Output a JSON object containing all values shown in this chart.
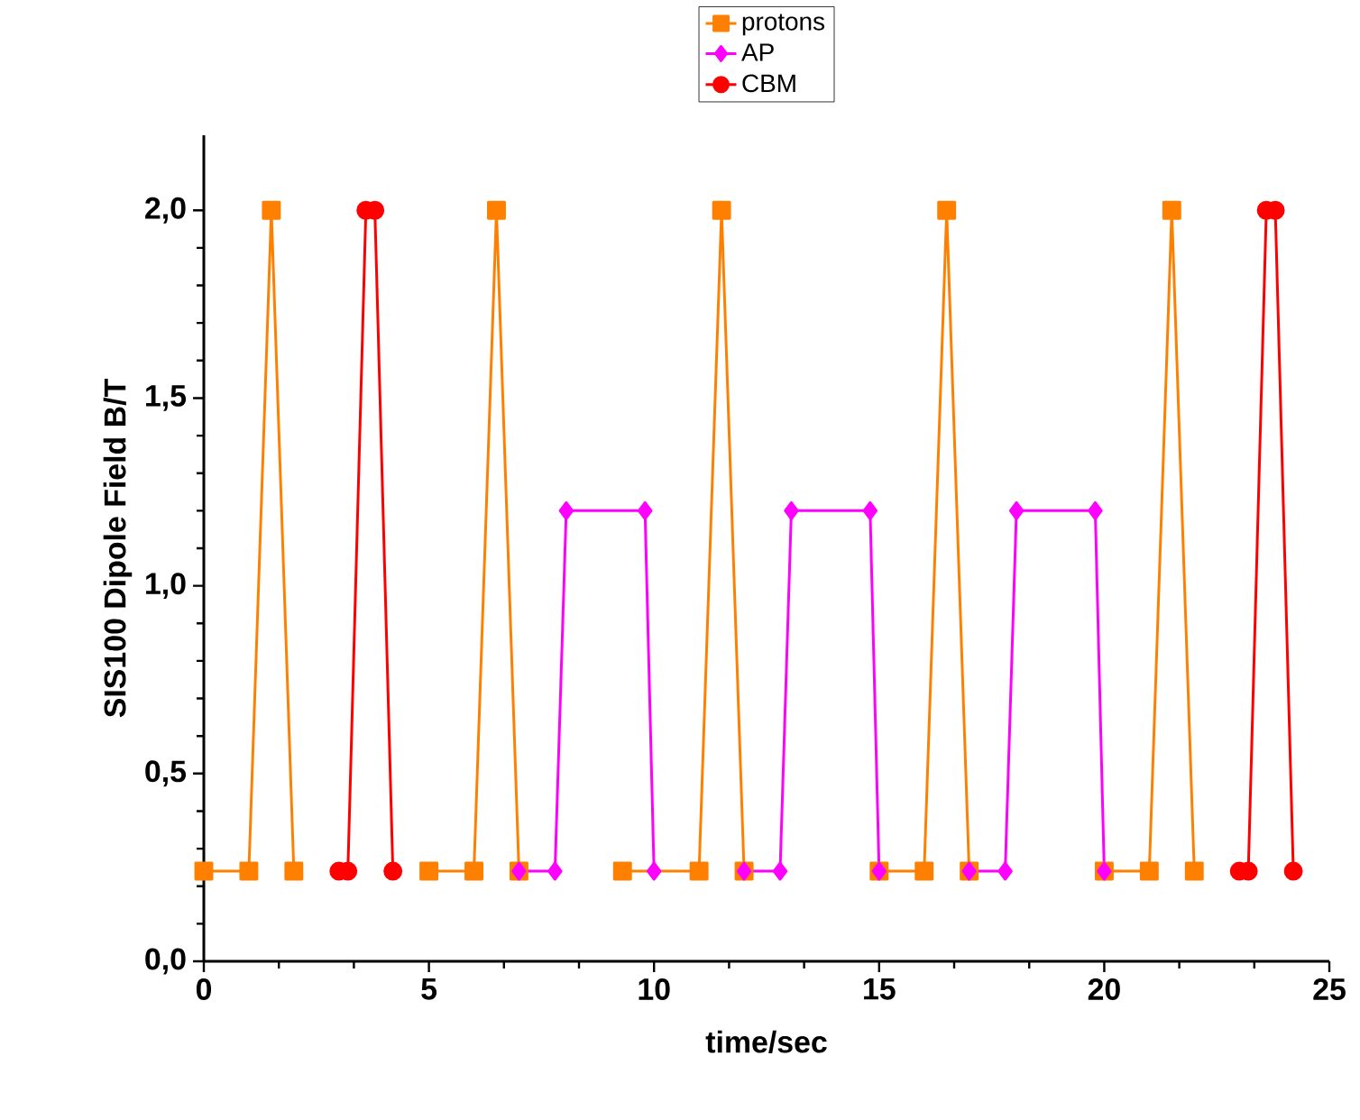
{
  "chart_data": {
    "type": "line",
    "xlabel": "time/sec",
    "ylabel": "SIS100 Dipole Field B/T",
    "xlim": [
      0,
      25
    ],
    "ylim": [
      0,
      2.2
    ],
    "xticks": [
      0,
      5,
      10,
      15,
      20,
      25
    ],
    "yticks": [
      {
        "value": 0,
        "label": "0,0"
      },
      {
        "value": 0.5,
        "label": "0,5"
      },
      {
        "value": 1,
        "label": "1,0"
      },
      {
        "value": 1.5,
        "label": "1,5"
      },
      {
        "value": 2,
        "label": "2,0"
      }
    ],
    "legend": "top",
    "grid": false,
    "line_style": "solid",
    "series": [
      {
        "name": "protons",
        "color": "#ff8000",
        "marker": "square",
        "x": [
          0,
          1,
          1.5,
          2,
          3.5,
          5,
          6,
          6.5,
          7,
          8,
          9.3,
          11,
          11.5,
          12,
          13.5,
          15,
          16,
          16.5,
          17,
          18.5,
          20,
          21,
          21.5,
          22
        ],
        "values": [
          0.24,
          0.24,
          2.0,
          0.24,
          null,
          0.24,
          0.24,
          2.0,
          0.24,
          null,
          0.24,
          0.24,
          2.0,
          0.24,
          null,
          0.24,
          0.24,
          2.0,
          0.24,
          null,
          0.24,
          0.24,
          2.0,
          0.24
        ]
      },
      {
        "name": "AP",
        "color": "#ff00ff",
        "marker": "diamond",
        "x": [
          7,
          7.8,
          8.05,
          9.8,
          10,
          11,
          12,
          12.8,
          13.05,
          14.8,
          15,
          16,
          17,
          17.8,
          18.05,
          19.8,
          20
        ],
        "values": [
          0.24,
          0.24,
          1.2,
          1.2,
          0.24,
          null,
          0.24,
          0.24,
          1.2,
          1.2,
          0.24,
          null,
          0.24,
          0.24,
          1.2,
          1.2,
          0.24
        ]
      },
      {
        "name": "CBM",
        "color": "#ff0000",
        "marker": "circle",
        "x": [
          3,
          3.2,
          3.6,
          3.8,
          4.2,
          13,
          23,
          23.2,
          23.6,
          23.8,
          24.2
        ],
        "values": [
          0.24,
          0.24,
          2.0,
          2.0,
          0.24,
          null,
          0.24,
          0.24,
          2.0,
          2.0,
          0.24
        ]
      }
    ]
  }
}
